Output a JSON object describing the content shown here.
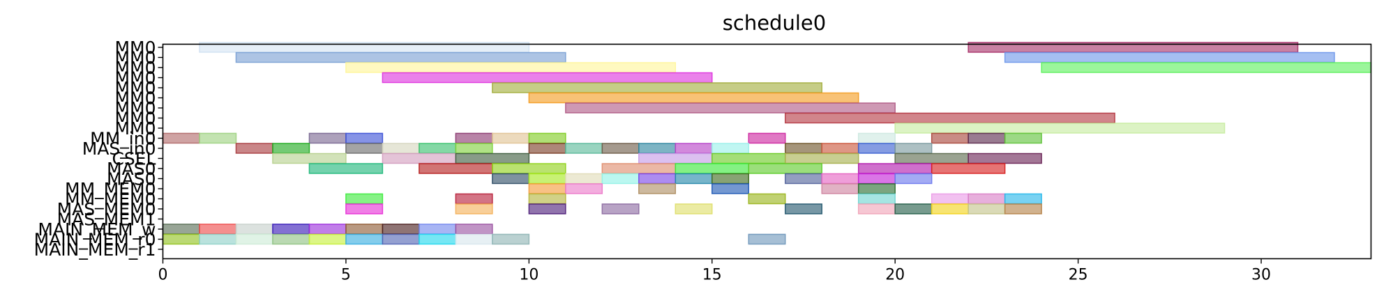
{
  "chart_data": {
    "type": "gantt",
    "title": "schedule0",
    "xlabel": "",
    "ylabel": "",
    "xlim": [
      0,
      33
    ],
    "grid": false,
    "x_ticks": [
      "0",
      "5",
      "10",
      "15",
      "20",
      "25",
      "30"
    ],
    "rows": [
      "MM0",
      "MM0",
      "MM0",
      "MM0",
      "MM0",
      "MM0",
      "MM0",
      "MM0",
      "MM0",
      "MM_in0",
      "MAS_in0",
      "CSEL",
      "MAS0",
      "MAS0",
      "MM_MEM0",
      "MM_MEM0",
      "MAS_MEM0",
      "MAS_MEM1",
      "MAIN_MEM_w",
      "MAIN_MEM_r0",
      "MAIN_MEM_r1"
    ],
    "tasks": [
      {
        "row": 0,
        "start": 1,
        "end": 10,
        "color": "#c8dcf0",
        "alpha": 0.45
      },
      {
        "row": 0,
        "start": 22,
        "end": 31,
        "color": "#a8336a"
      },
      {
        "row": 1,
        "start": 2,
        "end": 11,
        "color": "#7a9fd4"
      },
      {
        "row": 1,
        "start": 23,
        "end": 32,
        "color": "#6e97ea"
      },
      {
        "row": 2,
        "start": 5,
        "end": 14,
        "color": "#fff59a"
      },
      {
        "row": 2,
        "start": 24,
        "end": 33,
        "color": "#5ef05e"
      },
      {
        "row": 3,
        "start": 6,
        "end": 15,
        "color": "#dd33dd"
      },
      {
        "row": 4,
        "start": 9,
        "end": 18,
        "color": "#a3ae3e"
      },
      {
        "row": 5,
        "start": 10,
        "end": 19,
        "color": "#f39c22"
      },
      {
        "row": 6,
        "start": 11,
        "end": 20,
        "color": "#b05a86"
      },
      {
        "row": 7,
        "start": 17,
        "end": 26,
        "color": "#b53a43"
      },
      {
        "row": 8,
        "start": 20,
        "end": 29,
        "color": "#c7eca0"
      },
      {
        "row": 9,
        "start": 0,
        "end": 1,
        "color": "#b16a6a"
      },
      {
        "row": 9,
        "start": 1,
        "end": 2,
        "color": "#9ed281"
      },
      {
        "row": 9,
        "start": 4,
        "end": 5,
        "color": "#7a6791"
      },
      {
        "row": 9,
        "start": 5,
        "end": 6,
        "color": "#3b50d6"
      },
      {
        "row": 9,
        "start": 8,
        "end": 9,
        "color": "#8c3871"
      },
      {
        "row": 9,
        "start": 9,
        "end": 10,
        "color": "#e0c394"
      },
      {
        "row": 9,
        "start": 10,
        "end": 11,
        "color": "#7fcc22"
      },
      {
        "row": 9,
        "start": 16,
        "end": 17,
        "color": "#cd27a0"
      },
      {
        "row": 9,
        "start": 19,
        "end": 20,
        "color": "#cde8e0"
      },
      {
        "row": 9,
        "start": 21,
        "end": 22,
        "color": "#a8453a"
      },
      {
        "row": 9,
        "start": 22,
        "end": 23,
        "color": "#5b2a4d"
      },
      {
        "row": 9,
        "start": 23,
        "end": 24,
        "color": "#5fc23a"
      },
      {
        "row": 10,
        "start": 2,
        "end": 3,
        "color": "#a83c3f"
      },
      {
        "row": 10,
        "start": 3,
        "end": 4,
        "color": "#1fa91f"
      },
      {
        "row": 10,
        "start": 5,
        "end": 6,
        "color": "#6c6c6c"
      },
      {
        "row": 10,
        "start": 6,
        "end": 7,
        "color": "#d6d6bf"
      },
      {
        "row": 10,
        "start": 7,
        "end": 8,
        "color": "#39c06e"
      },
      {
        "row": 10,
        "start": 8,
        "end": 9,
        "color": "#7fd13b"
      },
      {
        "row": 10,
        "start": 10,
        "end": 11,
        "color": "#7a3d26"
      },
      {
        "row": 10,
        "start": 11,
        "end": 12,
        "color": "#5ab99a"
      },
      {
        "row": 10,
        "start": 12,
        "end": 13,
        "color": "#6e5c49"
      },
      {
        "row": 10,
        "start": 13,
        "end": 14,
        "color": "#2d86a0"
      },
      {
        "row": 10,
        "start": 14,
        "end": 15,
        "color": "#b641c7"
      },
      {
        "row": 10,
        "start": 15,
        "end": 16,
        "color": "#9af0ea"
      },
      {
        "row": 10,
        "start": 17,
        "end": 18,
        "color": "#6e5428"
      },
      {
        "row": 10,
        "start": 18,
        "end": 19,
        "color": "#c9553a"
      },
      {
        "row": 10,
        "start": 19,
        "end": 20,
        "color": "#3a5fd1"
      },
      {
        "row": 10,
        "start": 20,
        "end": 21,
        "color": "#7a999e"
      },
      {
        "row": 11,
        "start": 3,
        "end": 5,
        "color": "#b6d08e"
      },
      {
        "row": 11,
        "start": 6,
        "end": 8,
        "color": "#d39ebe"
      },
      {
        "row": 11,
        "start": 8,
        "end": 10,
        "color": "#3f5e3f"
      },
      {
        "row": 11,
        "start": 13,
        "end": 15,
        "color": "#c59ae6"
      },
      {
        "row": 11,
        "start": 15,
        "end": 17,
        "color": "#6cca25"
      },
      {
        "row": 11,
        "start": 17,
        "end": 19,
        "color": "#a7b04d"
      },
      {
        "row": 11,
        "start": 20,
        "end": 22,
        "color": "#5c6a4d"
      },
      {
        "row": 11,
        "start": 22,
        "end": 24,
        "color": "#6a2456"
      },
      {
        "row": 12,
        "start": 4,
        "end": 6,
        "color": "#1fb77a"
      },
      {
        "row": 12,
        "start": 7,
        "end": 9,
        "color": "#b51e1e"
      },
      {
        "row": 12,
        "start": 9,
        "end": 11,
        "color": "#8fd119"
      },
      {
        "row": 12,
        "start": 12,
        "end": 14,
        "color": "#df8c6d"
      },
      {
        "row": 12,
        "start": 14,
        "end": 16,
        "color": "#39e839"
      },
      {
        "row": 12,
        "start": 16,
        "end": 18,
        "color": "#5dcc2a"
      },
      {
        "row": 12,
        "start": 19,
        "end": 21,
        "color": "#b219ad"
      },
      {
        "row": 12,
        "start": 21,
        "end": 23,
        "color": "#d71f1f"
      },
      {
        "row": 13,
        "start": 9,
        "end": 10,
        "color": "#2e4d66"
      },
      {
        "row": 13,
        "start": 10,
        "end": 11,
        "color": "#a7e81e"
      },
      {
        "row": 13,
        "start": 11,
        "end": 12,
        "color": "#e0dcb8"
      },
      {
        "row": 13,
        "start": 12,
        "end": 13,
        "color": "#91f2e6"
      },
      {
        "row": 13,
        "start": 13,
        "end": 14,
        "color": "#7a45e6"
      },
      {
        "row": 13,
        "start": 14,
        "end": 15,
        "color": "#2487a9"
      },
      {
        "row": 13,
        "start": 15,
        "end": 16,
        "color": "#3f6b1f"
      },
      {
        "row": 13,
        "start": 17,
        "end": 18,
        "color": "#51629a"
      },
      {
        "row": 13,
        "start": 18,
        "end": 19,
        "color": "#e563c1"
      },
      {
        "row": 13,
        "start": 19,
        "end": 20,
        "color": "#c422d6"
      },
      {
        "row": 13,
        "start": 20,
        "end": 21,
        "color": "#6b77ee"
      },
      {
        "row": 14,
        "start": 10,
        "end": 11,
        "color": "#f49b3a"
      },
      {
        "row": 14,
        "start": 11,
        "end": 12,
        "color": "#ec7ac9"
      },
      {
        "row": 14,
        "start": 13,
        "end": 14,
        "color": "#af8e63"
      },
      {
        "row": 14,
        "start": 15,
        "end": 16,
        "color": "#1f59b5"
      },
      {
        "row": 14,
        "start": 18,
        "end": 19,
        "color": "#cf83a0"
      },
      {
        "row": 14,
        "start": 19,
        "end": 20,
        "color": "#2a6d30"
      },
      {
        "row": 15,
        "start": 5,
        "end": 6,
        "color": "#3cea3c"
      },
      {
        "row": 15,
        "start": 8,
        "end": 9,
        "color": "#b81f3a"
      },
      {
        "row": 15,
        "start": 10,
        "end": 11,
        "color": "#b5b53d"
      },
      {
        "row": 15,
        "start": 16,
        "end": 17,
        "color": "#9ab41c"
      },
      {
        "row": 15,
        "start": 19,
        "end": 20,
        "color": "#70d5d0"
      },
      {
        "row": 15,
        "start": 21,
        "end": 22,
        "color": "#ea9be6"
      },
      {
        "row": 15,
        "start": 22,
        "end": 23,
        "color": "#d97ec6"
      },
      {
        "row": 15,
        "start": 23,
        "end": 24,
        "color": "#26b7ea"
      },
      {
        "row": 16,
        "start": 5,
        "end": 6,
        "color": "#e62fd6"
      },
      {
        "row": 16,
        "start": 8,
        "end": 9,
        "color": "#f3b15a"
      },
      {
        "row": 16,
        "start": 10,
        "end": 11,
        "color": "#4e1f7a"
      },
      {
        "row": 16,
        "start": 12,
        "end": 13,
        "color": "#8c6ba1"
      },
      {
        "row": 16,
        "start": 14,
        "end": 15,
        "color": "#dede6b"
      },
      {
        "row": 16,
        "start": 17,
        "end": 18,
        "color": "#23576e"
      },
      {
        "row": 16,
        "start": 19,
        "end": 20,
        "color": "#f0a4b8"
      },
      {
        "row": 16,
        "start": 20,
        "end": 21,
        "color": "#245e49"
      },
      {
        "row": 16,
        "start": 21,
        "end": 22,
        "color": "#f2d31b"
      },
      {
        "row": 16,
        "start": 22,
        "end": 23,
        "color": "#c4c48a"
      },
      {
        "row": 16,
        "start": 23,
        "end": 24,
        "color": "#b58248"
      },
      {
        "row": 18,
        "start": 0,
        "end": 1,
        "color": "#586e55"
      },
      {
        "row": 18,
        "start": 1,
        "end": 2,
        "color": "#ee4b4b"
      },
      {
        "row": 18,
        "start": 2,
        "end": 3,
        "color": "#c7d1cc"
      },
      {
        "row": 18,
        "start": 3,
        "end": 4,
        "color": "#3719b8"
      },
      {
        "row": 18,
        "start": 4,
        "end": 5,
        "color": "#9b2fdb"
      },
      {
        "row": 18,
        "start": 5,
        "end": 6,
        "color": "#8e5a33"
      },
      {
        "row": 18,
        "start": 6,
        "end": 7,
        "color": "#4a1f1f"
      },
      {
        "row": 18,
        "start": 7,
        "end": 8,
        "color": "#7387ee"
      },
      {
        "row": 18,
        "start": 8,
        "end": 9,
        "color": "#9a53a1"
      },
      {
        "row": 19,
        "start": 0,
        "end": 1,
        "color": "#92c21f"
      },
      {
        "row": 19,
        "start": 1,
        "end": 2,
        "color": "#8fd1c8"
      },
      {
        "row": 19,
        "start": 2,
        "end": 3,
        "color": "#cdebd6"
      },
      {
        "row": 19,
        "start": 3,
        "end": 4,
        "color": "#90c283"
      },
      {
        "row": 19,
        "start": 4,
        "end": 5,
        "color": "#c7f03b"
      },
      {
        "row": 19,
        "start": 5,
        "end": 6,
        "color": "#39aee0"
      },
      {
        "row": 19,
        "start": 6,
        "end": 7,
        "color": "#5265b5"
      },
      {
        "row": 19,
        "start": 7,
        "end": 8,
        "color": "#22d8ee"
      },
      {
        "row": 19,
        "start": 8,
        "end": 9,
        "color": "#d8e6ee"
      },
      {
        "row": 19,
        "start": 9,
        "end": 10,
        "color": "#8fb5b5"
      },
      {
        "row": 19,
        "start": 16,
        "end": 17,
        "color": "#6f97bb"
      }
    ]
  }
}
